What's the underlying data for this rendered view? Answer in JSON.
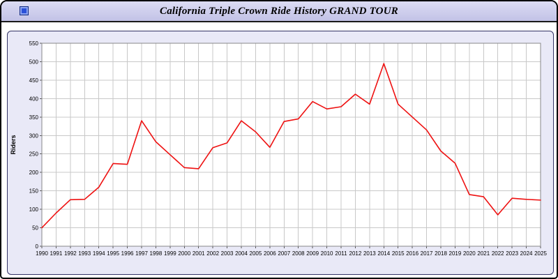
{
  "title": "California Triple Crown Ride History GRAND TOUR",
  "window": {
    "icon": "blue-square-icon"
  },
  "colors": {
    "titlebar_bg": "#ccccee",
    "panel_bg": "#e9e9f7",
    "panel_border": "#333366",
    "grid": "#c8c8c8",
    "plot_border": "#888888",
    "line": "#ee1111"
  },
  "chart_data": {
    "type": "line",
    "title": "California Triple Crown Ride History GRAND TOUR",
    "xlabel": "",
    "ylabel": "Riders",
    "ylim": [
      0,
      550
    ],
    "ytick_step": 50,
    "grid": true,
    "legend": false,
    "line_color": "#ee1111",
    "x": [
      1990,
      1991,
      1992,
      1993,
      1994,
      1995,
      1996,
      1997,
      1998,
      1999,
      2000,
      2001,
      2002,
      2003,
      2004,
      2005,
      2006,
      2007,
      2008,
      2009,
      2010,
      2011,
      2012,
      2013,
      2014,
      2015,
      2016,
      2017,
      2018,
      2019,
      2020,
      2021,
      2022,
      2023,
      2024,
      2025
    ],
    "series": [
      {
        "name": "Riders",
        "values": [
          50,
          90,
          126,
          127,
          160,
          224,
          222,
          340,
          283,
          248,
          213,
          210,
          267,
          280,
          340,
          310,
          268,
          338,
          345,
          392,
          372,
          378,
          412,
          385,
          495,
          385,
          350,
          315,
          258,
          225,
          140,
          134,
          85,
          130,
          127,
          125
        ]
      }
    ]
  }
}
